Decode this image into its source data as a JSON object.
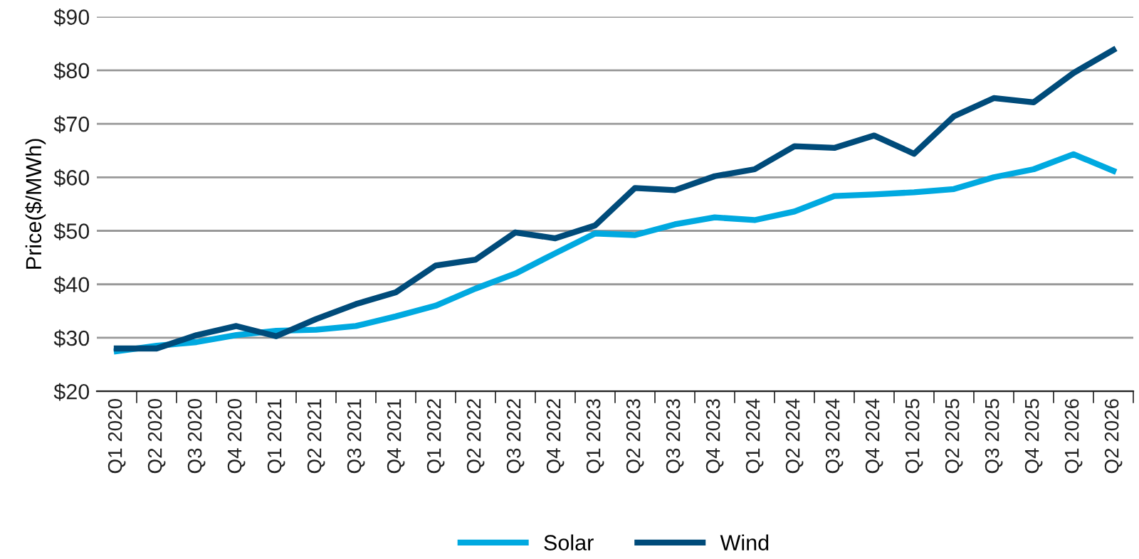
{
  "chart_data": {
    "type": "line",
    "ylabel": "Price($/MWh)",
    "categories": [
      "Q1 2020",
      "Q2 2020",
      "Q3 2020",
      "Q4 2020",
      "Q1 2021",
      "Q2 2021",
      "Q3 2021",
      "Q4 2021",
      "Q1 2022",
      "Q2 2022",
      "Q3 2022",
      "Q4 2022",
      "Q1 2023",
      "Q2 2023",
      "Q3 2023",
      "Q4 2023",
      "Q1 2024",
      "Q2 2024",
      "Q3 2024",
      "Q4 2024",
      "Q1 2025",
      "Q2 2025",
      "Q3 2025",
      "Q4 2025",
      "Q1 2026",
      "Q2 2026"
    ],
    "series": [
      {
        "name": "Solar",
        "color": "#00a9e0",
        "values": [
          27.5,
          28.5,
          29.2,
          30.5,
          31.3,
          31.5,
          32.2,
          34,
          36,
          39.2,
          42,
          45.8,
          49.5,
          49.2,
          51.2,
          52.5,
          52,
          53.6,
          56.5,
          56.8,
          57.2,
          57.8,
          60,
          61.5,
          64.3,
          61.2
        ]
      },
      {
        "name": "Wind",
        "color": "#004b7a",
        "values": [
          28,
          28,
          30.5,
          32.2,
          30.3,
          33.5,
          36.3,
          38.5,
          43.5,
          44.6,
          49.7,
          48.6,
          51,
          58,
          57.6,
          60.2,
          61.5,
          65.8,
          65.5,
          67.8,
          64.4,
          71.4,
          74.8,
          74,
          79.5,
          83.8
        ]
      }
    ],
    "ylim": [
      20,
      90
    ],
    "yticks": [
      {
        "value": 20,
        "label": "$20"
      },
      {
        "value": 30,
        "label": "$30"
      },
      {
        "value": 40,
        "label": "$40"
      },
      {
        "value": 50,
        "label": "$50"
      },
      {
        "value": 60,
        "label": "$60"
      },
      {
        "value": 70,
        "label": "$70"
      },
      {
        "value": 80,
        "label": "$80"
      },
      {
        "value": 90,
        "label": "$90"
      }
    ],
    "grid": "y",
    "legend": "bottom",
    "marker": "none",
    "line_style": "solid"
  }
}
